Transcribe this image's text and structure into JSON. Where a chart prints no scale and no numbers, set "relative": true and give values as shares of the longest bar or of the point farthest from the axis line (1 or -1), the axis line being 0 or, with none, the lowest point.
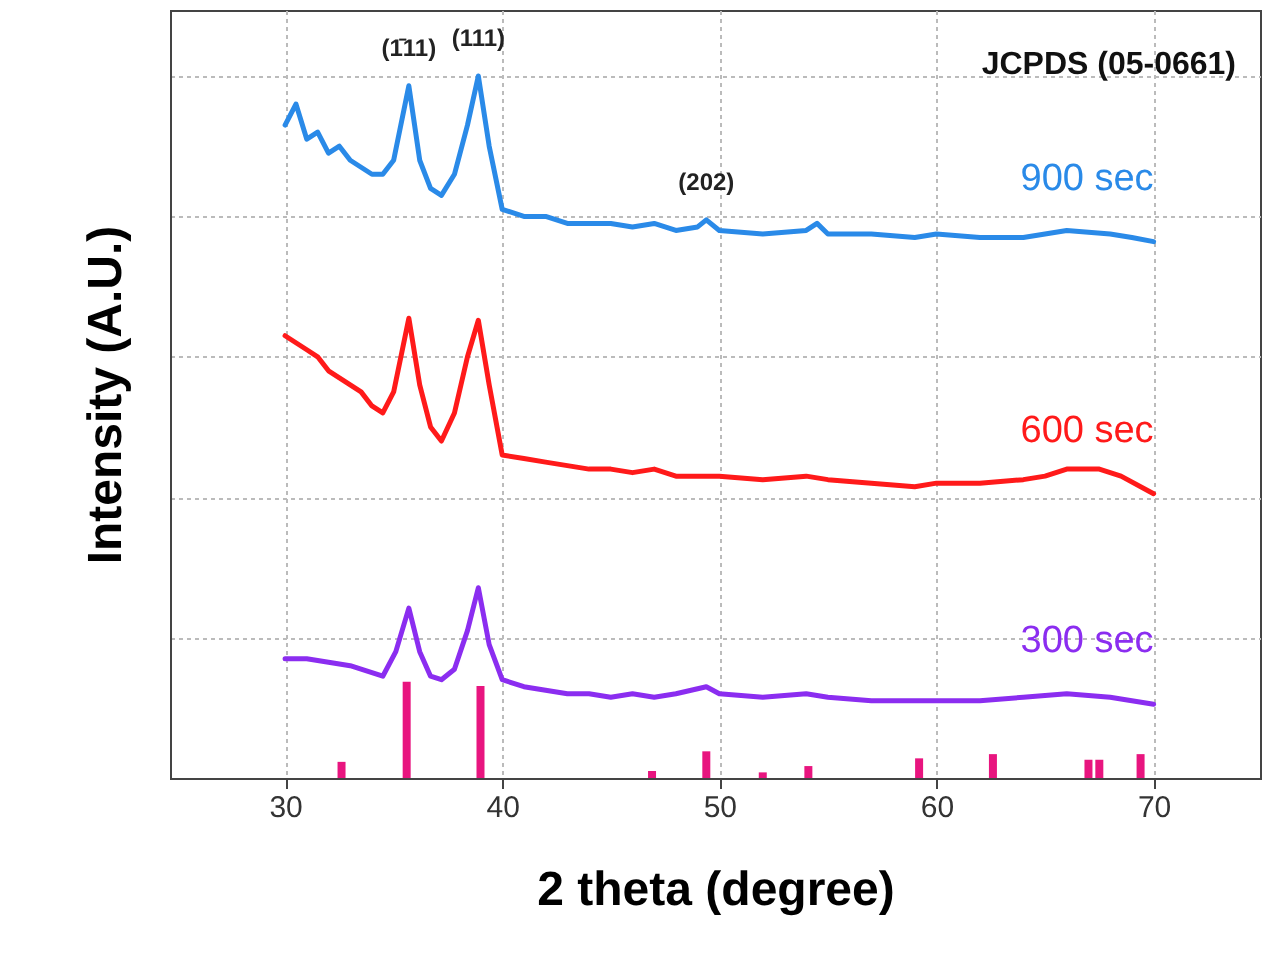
{
  "chart_data": {
    "type": "line",
    "relative": true,
    "xlabel": "2 theta (degree)",
    "ylabel": "Intensity (A.U.)",
    "xlim": [
      24.7,
      74.9
    ],
    "xticks": [
      30,
      40,
      50,
      60,
      70
    ],
    "grid": true,
    "annotations": [
      {
        "text": "(1̄11)",
        "x": 35.7,
        "y": 0.986
      },
      {
        "text": "(111)",
        "x": 38.9,
        "y": 1.0
      },
      {
        "text": "(202)",
        "x": 49.4,
        "y": 0.795
      },
      "JCPDS (05-0661)"
    ],
    "series": [
      {
        "name": "900 sec",
        "color": "#2a8ae8",
        "x": [
          30,
          30.5,
          31,
          31.5,
          32,
          32.5,
          33,
          33.5,
          34,
          34.5,
          35,
          35.7,
          36.2,
          36.7,
          37.2,
          37.8,
          38.4,
          38.9,
          39.4,
          40,
          41,
          42,
          43,
          44,
          45,
          46,
          47,
          48,
          49,
          49.4,
          50,
          52,
          54,
          54.5,
          55,
          57,
          59,
          60,
          62,
          64,
          66,
          68,
          69,
          70
        ],
        "values": [
          0.93,
          0.96,
          0.91,
          0.92,
          0.89,
          0.9,
          0.88,
          0.87,
          0.86,
          0.86,
          0.88,
          0.986,
          0.88,
          0.84,
          0.83,
          0.86,
          0.93,
          1.0,
          0.9,
          0.81,
          0.8,
          0.8,
          0.79,
          0.79,
          0.79,
          0.785,
          0.79,
          0.78,
          0.785,
          0.795,
          0.78,
          0.775,
          0.78,
          0.79,
          0.775,
          0.775,
          0.77,
          0.775,
          0.77,
          0.77,
          0.78,
          0.775,
          0.77,
          0.764
        ]
      },
      {
        "name": "600 sec",
        "color": "#ff1a1a",
        "x": [
          30,
          30.5,
          31,
          31.5,
          32,
          32.5,
          33,
          33.5,
          34,
          34.5,
          35,
          35.7,
          36.2,
          36.7,
          37.2,
          37.8,
          38.4,
          38.9,
          39.4,
          40,
          41,
          42,
          43,
          44,
          45,
          46,
          47,
          48,
          49,
          50,
          52,
          54,
          55,
          57,
          59,
          60,
          62,
          64,
          65,
          66,
          67.5,
          68.5,
          70
        ],
        "values": [
          0.63,
          0.62,
          0.61,
          0.6,
          0.58,
          0.57,
          0.56,
          0.55,
          0.53,
          0.52,
          0.55,
          0.655,
          0.56,
          0.5,
          0.48,
          0.52,
          0.6,
          0.652,
          0.56,
          0.46,
          0.455,
          0.45,
          0.445,
          0.44,
          0.44,
          0.435,
          0.44,
          0.43,
          0.43,
          0.43,
          0.425,
          0.43,
          0.425,
          0.42,
          0.415,
          0.42,
          0.42,
          0.425,
          0.43,
          0.44,
          0.44,
          0.43,
          0.405
        ]
      },
      {
        "name": "300 sec",
        "color": "#8b2df0",
        "x": [
          30,
          31,
          32,
          33,
          34,
          34.5,
          35.1,
          35.7,
          36.2,
          36.7,
          37.2,
          37.8,
          38.4,
          38.9,
          39.4,
          40,
          41,
          42,
          43,
          44,
          45,
          46,
          47,
          48,
          49.4,
          50,
          52,
          54,
          55,
          57,
          59,
          60,
          62,
          64,
          66,
          68,
          70
        ],
        "values": [
          0.17,
          0.17,
          0.165,
          0.16,
          0.15,
          0.145,
          0.18,
          0.242,
          0.18,
          0.145,
          0.14,
          0.155,
          0.21,
          0.271,
          0.19,
          0.14,
          0.13,
          0.125,
          0.12,
          0.12,
          0.115,
          0.12,
          0.115,
          0.12,
          0.13,
          0.12,
          0.115,
          0.12,
          0.115,
          0.11,
          0.11,
          0.11,
          0.11,
          0.115,
          0.12,
          0.115,
          0.105
        ]
      },
      {
        "type": "bar",
        "color": "#e8157f",
        "x": [
          32.6,
          35.6,
          39.0,
          46.9,
          49.4,
          52.0,
          54.1,
          59.2,
          62.6,
          67.0,
          67.5,
          69.4
        ],
        "values": [
          0.023,
          0.137,
          0.131,
          0.01,
          0.038,
          0.008,
          0.017,
          0.028,
          0.034,
          0.026,
          0.026,
          0.034
        ]
      }
    ]
  }
}
